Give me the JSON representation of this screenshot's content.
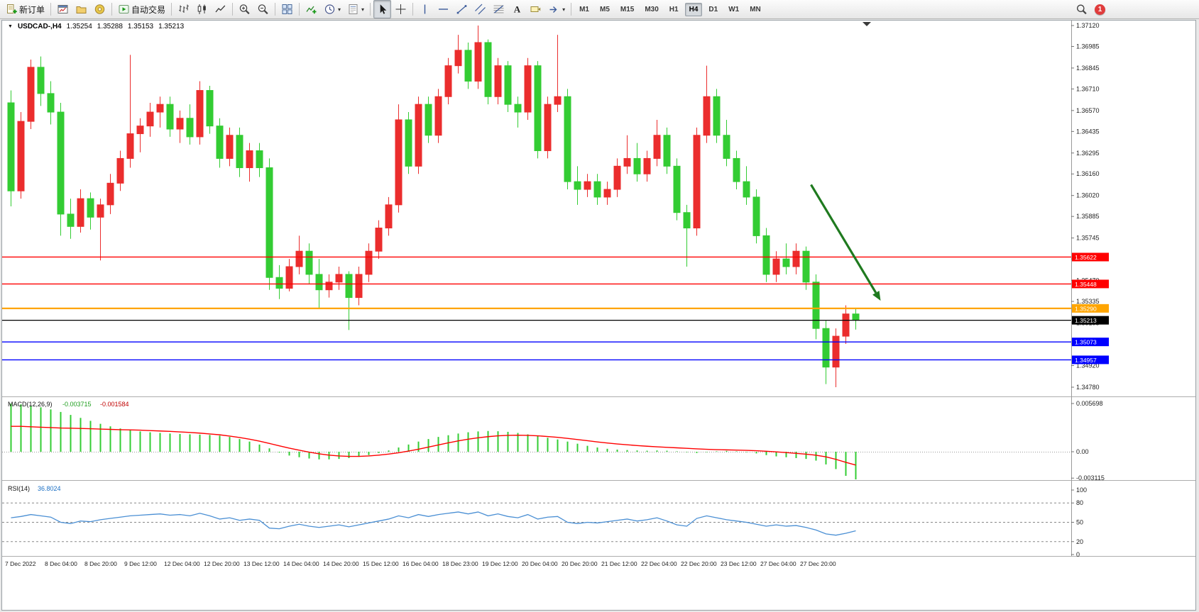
{
  "toolbar": {
    "caret_glyph": "▾",
    "notification_count": "1",
    "groups": [
      {
        "name": "orders",
        "items": [
          {
            "name": "new-order-button",
            "icon": "new-order",
            "label": "新订单"
          }
        ]
      },
      {
        "name": "windows",
        "items": [
          {
            "name": "new-chart-button",
            "icon": "new-chart"
          },
          {
            "name": "profiles-button",
            "icon": "profiles"
          },
          {
            "name": "metaeditor-button",
            "icon": "metaeditor"
          }
        ]
      },
      {
        "name": "autotrading",
        "items": [
          {
            "name": "autotrading-button",
            "icon": "autotrading",
            "label": "自动交易"
          }
        ]
      },
      {
        "name": "chart-types",
        "items": [
          {
            "name": "bar-chart-button",
            "icon": "bar-chart"
          },
          {
            "name": "candlestick-chart-button",
            "icon": "candlestick-chart"
          },
          {
            "name": "line-chart-button",
            "icon": "line-chart"
          }
        ]
      },
      {
        "name": "zoom",
        "items": [
          {
            "name": "zoom-in-button",
            "icon": "zoom-in"
          },
          {
            "name": "zoom-out-button",
            "icon": "zoom-out"
          }
        ]
      },
      {
        "name": "arrange",
        "items": [
          {
            "name": "tile-windows-button",
            "icon": "tile-windows"
          }
        ]
      },
      {
        "name": "chart-tools",
        "items": [
          {
            "name": "indicators-button",
            "icon": "indicators"
          },
          {
            "name": "periods-button",
            "icon": "periods",
            "caret": true
          },
          {
            "name": "templates-button",
            "icon": "templates",
            "caret": true
          }
        ]
      },
      {
        "name": "cursor-tools",
        "items": [
          {
            "name": "cursor-button",
            "icon": "cursor",
            "active": true
          },
          {
            "name": "crosshair-button",
            "icon": "crosshair"
          }
        ]
      },
      {
        "name": "line-studies",
        "items": [
          {
            "name": "vertical-line-button",
            "icon": "vertical-line"
          },
          {
            "name": "horizontal-line-button",
            "icon": "horizontal-line"
          },
          {
            "name": "trendline-button",
            "icon": "trendline"
          },
          {
            "name": "equidistant-channel-button",
            "icon": "channel"
          },
          {
            "name": "fibonacci-button",
            "icon": "fibonacci"
          },
          {
            "name": "text-button",
            "icon": "text"
          },
          {
            "name": "text-label-button",
            "icon": "text-label"
          },
          {
            "name": "arrows-button",
            "icon": "arrow-tool",
            "caret": true
          }
        ]
      },
      {
        "name": "timeframes",
        "items": []
      }
    ],
    "timeframes": [
      {
        "label": "M1"
      },
      {
        "label": "M5"
      },
      {
        "label": "M15"
      },
      {
        "label": "M30"
      },
      {
        "label": "H1"
      },
      {
        "label": "H4",
        "active": true
      },
      {
        "label": "D1"
      },
      {
        "label": "W1"
      },
      {
        "label": "MN"
      }
    ]
  },
  "chart_window": {
    "collapse_glyph": "▼",
    "symbol": "USDCAD-,H4",
    "open": "1.35254",
    "high": "1.35288",
    "low": "1.35153",
    "close": "1.35213"
  },
  "chart_data": {
    "type": "candlestick",
    "symbol": "USDCAD-",
    "period": "H4",
    "up_color": "#eb2d2d",
    "down_color": "#33cc33",
    "price_axis_labels": [
      "1.37120",
      "1.36985",
      "1.36845",
      "1.36710",
      "1.36570",
      "1.36435",
      "1.36295",
      "1.36160",
      "1.36020",
      "1.35885",
      "1.35745",
      "1.35610",
      "1.35470",
      "1.35335",
      "1.35195",
      "1.35060",
      "1.34920",
      "1.34780"
    ],
    "time_axis_labels": [
      {
        "bar": 0,
        "text": "7 Dec 2022"
      },
      {
        "bar": 4,
        "text": "8 Dec 04:00"
      },
      {
        "bar": 8,
        "text": "8 Dec 20:00"
      },
      {
        "bar": 12,
        "text": "9 Dec 12:00"
      },
      {
        "bar": 16,
        "text": "12 Dec 04:00"
      },
      {
        "bar": 20,
        "text": "12 Dec 20:00"
      },
      {
        "bar": 24,
        "text": "13 Dec 12:00"
      },
      {
        "bar": 28,
        "text": "14 Dec 04:00"
      },
      {
        "bar": 32,
        "text": "14 Dec 20:00"
      },
      {
        "bar": 36,
        "text": "15 Dec 12:00"
      },
      {
        "bar": 40,
        "text": "16 Dec 04:00"
      },
      {
        "bar": 44,
        "text": "18 Dec 23:00"
      },
      {
        "bar": 48,
        "text": "19 Dec 12:00"
      },
      {
        "bar": 52,
        "text": "20 Dec 04:00"
      },
      {
        "bar": 56,
        "text": "20 Dec 20:00"
      },
      {
        "bar": 60,
        "text": "21 Dec 12:00"
      },
      {
        "bar": 64,
        "text": "22 Dec 04:00"
      },
      {
        "bar": 68,
        "text": "22 Dec 20:00"
      },
      {
        "bar": 72,
        "text": "23 Dec 12:00"
      },
      {
        "bar": 76,
        "text": "27 Dec 04:00"
      },
      {
        "bar": 80,
        "text": "27 Dec 20:00"
      }
    ],
    "horizontal_lines": [
      {
        "price": 1.35622,
        "label": "1.35622",
        "color": "#ff0000",
        "width": 1.4
      },
      {
        "price": 1.35448,
        "label": "1.35448",
        "color": "#ff0000",
        "width": 1.4
      },
      {
        "price": 1.3529,
        "label": "1.35290",
        "color": "#ffa500",
        "width": 2.2
      },
      {
        "price": 1.35213,
        "label": "1.35213",
        "color": "#000000",
        "width": 1.2
      },
      {
        "price": 1.35073,
        "label": "1.35073",
        "color": "#0000ff",
        "width": 1.4
      },
      {
        "price": 1.34957,
        "label": "1.34957",
        "color": "#0000ff",
        "width": 1.4
      }
    ],
    "arrow_annotation": {
      "from": {
        "bar": 80.5,
        "price": 1.3609
      },
      "to": {
        "bar": 87.5,
        "price": 1.3534
      },
      "color": "#1f7a1f"
    },
    "candles": [
      [
        1.3662,
        1.367,
        1.3595,
        1.3605
      ],
      [
        1.3605,
        1.3656,
        1.36,
        1.365
      ],
      [
        1.365,
        1.369,
        1.3645,
        1.3685
      ],
      [
        1.3685,
        1.3692,
        1.366,
        1.3668
      ],
      [
        1.3668,
        1.3676,
        1.3648,
        1.3656
      ],
      [
        1.3656,
        1.3662,
        1.3576,
        1.359
      ],
      [
        1.359,
        1.36,
        1.3574,
        1.3582
      ],
      [
        1.3582,
        1.3606,
        1.3578,
        1.36
      ],
      [
        1.36,
        1.3604,
        1.358,
        1.3588
      ],
      [
        1.3588,
        1.36,
        1.356,
        1.3596
      ],
      [
        1.3596,
        1.3616,
        1.359,
        1.361
      ],
      [
        1.361,
        1.3631,
        1.3605,
        1.3626
      ],
      [
        1.3626,
        1.3693,
        1.362,
        1.3642
      ],
      [
        1.3642,
        1.3652,
        1.363,
        1.3647
      ],
      [
        1.3647,
        1.3662,
        1.364,
        1.3656
      ],
      [
        1.3656,
        1.3666,
        1.3646,
        1.3661
      ],
      [
        1.3661,
        1.3666,
        1.364,
        1.3645
      ],
      [
        1.3645,
        1.3657,
        1.3636,
        1.3652
      ],
      [
        1.3652,
        1.3661,
        1.3635,
        1.364
      ],
      [
        1.364,
        1.3676,
        1.3635,
        1.367
      ],
      [
        1.367,
        1.3673,
        1.3642,
        1.3647
      ],
      [
        1.3647,
        1.3652,
        1.362,
        1.3626
      ],
      [
        1.3626,
        1.3646,
        1.3621,
        1.3641
      ],
      [
        1.3641,
        1.3646,
        1.3614,
        1.362
      ],
      [
        1.362,
        1.3636,
        1.3611,
        1.3631
      ],
      [
        1.3631,
        1.3636,
        1.3614,
        1.362
      ],
      [
        1.362,
        1.3626,
        1.3541,
        1.3549
      ],
      [
        1.3549,
        1.3557,
        1.3535,
        1.3542
      ],
      [
        1.3542,
        1.3561,
        1.354,
        1.3556
      ],
      [
        1.3556,
        1.3576,
        1.3551,
        1.3566
      ],
      [
        1.3566,
        1.3571,
        1.3545,
        1.3551
      ],
      [
        1.3551,
        1.3561,
        1.3529,
        1.3541
      ],
      [
        1.3541,
        1.3551,
        1.3536,
        1.3546
      ],
      [
        1.3546,
        1.3556,
        1.3541,
        1.3551
      ],
      [
        1.3551,
        1.3553,
        1.3515,
        1.3536
      ],
      [
        1.3536,
        1.3556,
        1.3531,
        1.3551
      ],
      [
        1.3551,
        1.3571,
        1.3546,
        1.3566
      ],
      [
        1.3566,
        1.3586,
        1.3561,
        1.3581
      ],
      [
        1.3581,
        1.3601,
        1.3576,
        1.3596
      ],
      [
        1.3596,
        1.3661,
        1.3591,
        1.3651
      ],
      [
        1.3651,
        1.3656,
        1.3616,
        1.3621
      ],
      [
        1.3621,
        1.3666,
        1.3616,
        1.3661
      ],
      [
        1.3661,
        1.3666,
        1.3636,
        1.3641
      ],
      [
        1.3641,
        1.3671,
        1.3636,
        1.3666
      ],
      [
        1.3666,
        1.3691,
        1.3661,
        1.3686
      ],
      [
        1.3686,
        1.3706,
        1.3681,
        1.3696
      ],
      [
        1.3696,
        1.3701,
        1.3671,
        1.3676
      ],
      [
        1.3676,
        1.3712,
        1.3671,
        1.3701
      ],
      [
        1.3701,
        1.3703,
        1.3661,
        1.3666
      ],
      [
        1.3666,
        1.3691,
        1.3661,
        1.3686
      ],
      [
        1.3686,
        1.3689,
        1.3656,
        1.3661
      ],
      [
        1.3661,
        1.3666,
        1.3646,
        1.3656
      ],
      [
        1.3656,
        1.3691,
        1.3651,
        1.3686
      ],
      [
        1.3686,
        1.3689,
        1.3626,
        1.3631
      ],
      [
        1.3631,
        1.3666,
        1.3626,
        1.3661
      ],
      [
        1.3661,
        1.3706,
        1.3656,
        1.3666
      ],
      [
        1.3666,
        1.3671,
        1.3606,
        1.3611
      ],
      [
        1.3611,
        1.3621,
        1.3596,
        1.3606
      ],
      [
        1.3606,
        1.3616,
        1.3601,
        1.3611
      ],
      [
        1.3611,
        1.3616,
        1.3596,
        1.3601
      ],
      [
        1.3601,
        1.3611,
        1.3596,
        1.3606
      ],
      [
        1.3606,
        1.3626,
        1.3601,
        1.3621
      ],
      [
        1.3621,
        1.3641,
        1.3616,
        1.3626
      ],
      [
        1.3626,
        1.3636,
        1.3611,
        1.3616
      ],
      [
        1.3616,
        1.3631,
        1.3611,
        1.3626
      ],
      [
        1.3626,
        1.3651,
        1.3621,
        1.3641
      ],
      [
        1.3641,
        1.3646,
        1.3616,
        1.3621
      ],
      [
        1.3621,
        1.3626,
        1.3586,
        1.3591
      ],
      [
        1.3591,
        1.3596,
        1.3556,
        1.3581
      ],
      [
        1.3581,
        1.3646,
        1.3576,
        1.3641
      ],
      [
        1.3641,
        1.3686,
        1.3636,
        1.3666
      ],
      [
        1.3666,
        1.3671,
        1.3636,
        1.3641
      ],
      [
        1.3641,
        1.3651,
        1.3621,
        1.3626
      ],
      [
        1.3626,
        1.3631,
        1.3606,
        1.3611
      ],
      [
        1.3611,
        1.3621,
        1.3596,
        1.3601
      ],
      [
        1.3601,
        1.3606,
        1.3571,
        1.3576
      ],
      [
        1.3576,
        1.3581,
        1.3546,
        1.3551
      ],
      [
        1.3551,
        1.3566,
        1.3546,
        1.3561
      ],
      [
        1.3561,
        1.3571,
        1.3551,
        1.3556
      ],
      [
        1.3556,
        1.3571,
        1.3551,
        1.3566
      ],
      [
        1.3566,
        1.3569,
        1.3541,
        1.3546
      ],
      [
        1.3546,
        1.3551,
        1.3509,
        1.3516
      ],
      [
        1.3516,
        1.3521,
        1.348,
        1.3491
      ],
      [
        1.3491,
        1.3516,
        1.3478,
        1.3511
      ],
      [
        1.3511,
        1.3531,
        1.3506,
        1.35254
      ],
      [
        1.35254,
        1.35288,
        1.35153,
        1.35213
      ]
    ],
    "indicators": {
      "macd": {
        "name": "MACD(12,26,9)",
        "main_value": "-0.003715",
        "signal_value": "-0.001584",
        "histogram_color": "#33cc33",
        "signal_color": "#ff0000",
        "axis_labels": [
          "0.005698",
          "0.00",
          "-0.003115"
        ],
        "histogram": [
          0.0057,
          0.0056,
          0.00545,
          0.00525,
          0.005,
          0.0047,
          0.00435,
          0.004,
          0.00365,
          0.0033,
          0.003,
          0.00275,
          0.00255,
          0.0024,
          0.0023,
          0.00222,
          0.00215,
          0.0021,
          0.00206,
          0.00202,
          0.00198,
          0.0019,
          0.00175,
          0.0015,
          0.0012,
          0.00085,
          0.0004,
          -0.0001,
          -0.00045,
          -0.00065,
          -0.0008,
          -0.0009,
          -0.0009,
          -0.00085,
          -0.00075,
          -0.0006,
          -0.0004,
          -0.00015,
          0.00015,
          0.0005,
          0.00085,
          0.0012,
          0.0015,
          0.00175,
          0.00195,
          0.00215,
          0.0023,
          0.0024,
          0.00245,
          0.00242,
          0.00235,
          0.00222,
          0.00205,
          0.00185,
          0.00165,
          0.00145,
          0.0012,
          0.00095,
          0.0007,
          0.0005,
          0.00035,
          0.00025,
          0.0002,
          0.00015,
          0.00012,
          0.00015,
          0.00012,
          5e-05,
          -5e-05,
          -0.00015,
          -5e-05,
          5e-05,
          0.0001,
          5e-05,
          -5e-05,
          -0.0002,
          -0.0004,
          -0.00055,
          -0.00065,
          -0.00075,
          -0.00085,
          -0.00105,
          -0.0015,
          -0.00205,
          -0.00285,
          -0.00372
        ],
        "signal": [
          0.003,
          0.003,
          0.00295,
          0.0029,
          0.00285,
          0.0028,
          0.00278,
          0.00275,
          0.00272,
          0.00268,
          0.00264,
          0.0026,
          0.00258,
          0.00255,
          0.0025,
          0.00245,
          0.0024,
          0.00234,
          0.00228,
          0.0022,
          0.0021,
          0.002,
          0.00185,
          0.00168,
          0.00148,
          0.00125,
          0.00098,
          0.0007,
          0.00042,
          0.00018,
          -5e-05,
          -0.00025,
          -0.0004,
          -0.0005,
          -0.00055,
          -0.00055,
          -0.0005,
          -0.0004,
          -0.00028,
          -0.00012,
          8e-05,
          0.0003,
          0.00055,
          0.0008,
          0.00105,
          0.00128,
          0.00148,
          0.00165,
          0.00178,
          0.00188,
          0.00193,
          0.00195,
          0.00193,
          0.00188,
          0.0018,
          0.0017,
          0.00158,
          0.00144,
          0.0013,
          0.00116,
          0.00103,
          0.00092,
          0.00082,
          0.00073,
          0.00065,
          0.00058,
          0.00052,
          0.00046,
          0.0004,
          0.00034,
          0.00029,
          0.00025,
          0.00022,
          0.00019,
          0.00016,
          0.00012,
          6e-05,
          -2e-05,
          -0.0001,
          -0.00019,
          -0.00029,
          -0.00041,
          -0.0006,
          -0.0009,
          -0.00125,
          -0.00158
        ]
      },
      "rsi": {
        "name": "RSI(14)",
        "value": "36.8024",
        "color": "#4a8fd4",
        "levels": [
          80,
          50,
          20
        ],
        "axis_labels": [
          "100",
          "80",
          "50",
          "20",
          "0"
        ],
        "series": [
          57,
          59,
          62,
          60,
          58,
          50,
          48,
          52,
          51,
          54,
          56,
          58,
          60,
          61,
          62,
          63,
          61,
          62,
          60,
          64,
          60,
          55,
          57,
          53,
          55,
          53,
          41,
          40,
          44,
          47,
          44,
          42,
          44,
          46,
          43,
          46,
          49,
          52,
          55,
          60,
          57,
          62,
          59,
          62,
          64,
          66,
          63,
          66,
          60,
          63,
          59,
          57,
          62,
          55,
          58,
          59,
          50,
          48,
          50,
          49,
          51,
          53,
          55,
          52,
          54,
          57,
          52,
          46,
          44,
          56,
          60,
          57,
          54,
          52,
          50,
          47,
          44,
          46,
          44,
          45,
          42,
          38,
          32,
          30,
          33,
          36.8
        ]
      }
    }
  }
}
